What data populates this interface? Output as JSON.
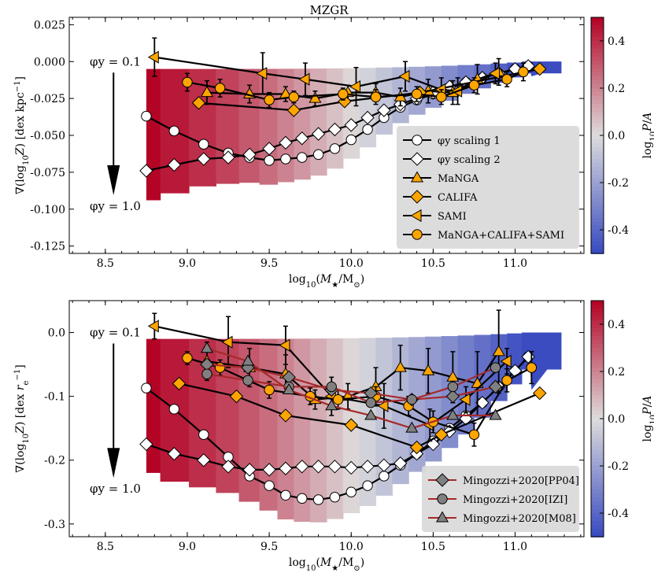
{
  "chart_data": [
    {
      "type": "line",
      "title": "MZGR",
      "xlabel": "log10(M*/M☉)",
      "ylabel": "∇(log10 Z) [dex kpc⁻¹]",
      "xlim": [
        8.28,
        11.42
      ],
      "ylim": [
        -0.13,
        0.03
      ],
      "xticks": [
        "8.5",
        "9.0",
        "9.5",
        "10.0",
        "10.5",
        "11.0"
      ],
      "yticks": [
        "0.025",
        "0.000",
        "-0.025",
        "-0.050",
        "-0.075",
        "-0.100",
        "-0.125"
      ],
      "colorbar": {
        "label": "log10 P/A",
        "range": [
          -0.5,
          0.5
        ],
        "ticks": [
          "0.4",
          "0.2",
          "0.0",
          "-0.2",
          "-0.4"
        ],
        "colors": [
          "#b40426",
          "#dddcdc",
          "#3b4cc0"
        ]
      },
      "annotations": {
        "phi_top": "φy = 0.1",
        "phi_bottom": "φy = 1.0"
      },
      "legend": {
        "placement": "lower-right",
        "entries": [
          {
            "label": "φy scaling 1",
            "marker": "circle",
            "color": "#ffffff"
          },
          {
            "label": "φy scaling 2",
            "marker": "diamond",
            "color": "#ffffff"
          },
          {
            "label": "MaNGA",
            "marker": "triangle",
            "color": "#ffa500"
          },
          {
            "label": "CALIFA",
            "marker": "diamond",
            "color": "#ffa500"
          },
          {
            "label": "SAMI",
            "marker": "triangle-left",
            "color": "#ffa500"
          },
          {
            "label": "MaNGA+CALIFA+SAMI",
            "marker": "circle",
            "color": "#ffa500"
          }
        ]
      },
      "series": [
        {
          "name": "φy scaling 1",
          "marker": "circle",
          "color": "#ffffff",
          "x": [
            8.75,
            8.92,
            9.1,
            9.25,
            9.38,
            9.5,
            9.6,
            9.7,
            9.8,
            9.9,
            10.0,
            10.1,
            10.2,
            10.3,
            10.4,
            10.5,
            10.6,
            10.7,
            10.8,
            10.9,
            11.0,
            11.08
          ],
          "y": [
            -0.037,
            -0.047,
            -0.056,
            -0.062,
            -0.065,
            -0.067,
            -0.066,
            -0.065,
            -0.063,
            -0.059,
            -0.053,
            -0.046,
            -0.038,
            -0.031,
            -0.026,
            -0.022,
            -0.018,
            -0.014,
            -0.011,
            -0.008,
            -0.005,
            -0.003
          ]
        },
        {
          "name": "φy scaling 2",
          "marker": "diamond",
          "color": "#ffffff",
          "x": [
            8.75,
            8.92,
            9.1,
            9.25,
            9.38,
            9.5,
            9.6,
            9.7,
            9.8,
            9.9,
            10.0,
            10.1,
            10.2,
            10.3,
            10.4,
            10.5,
            10.6,
            10.7,
            10.8,
            10.9,
            11.0,
            11.08
          ],
          "y": [
            -0.074,
            -0.07,
            -0.066,
            -0.065,
            -0.063,
            -0.059,
            -0.055,
            -0.052,
            -0.049,
            -0.046,
            -0.043,
            -0.038,
            -0.033,
            -0.029,
            -0.025,
            -0.021,
            -0.017,
            -0.014,
            -0.011,
            -0.008,
            -0.005,
            -0.003
          ]
        },
        {
          "name": "MaNGA",
          "marker": "triangle",
          "color": "#ffa500",
          "x": [
            9.12,
            9.38,
            9.6,
            9.78,
            9.98,
            10.15,
            10.3,
            10.47,
            10.62,
            10.77,
            10.9
          ],
          "y": [
            -0.021,
            -0.022,
            -0.022,
            -0.025,
            -0.021,
            -0.021,
            -0.024,
            -0.02,
            -0.021,
            -0.012,
            -0.007
          ],
          "err": [
            0.008,
            0.006,
            0.005,
            0.005,
            0.005,
            0.006,
            0.006,
            0.008,
            0.008,
            0.01,
            0.009
          ]
        },
        {
          "name": "CALIFA",
          "marker": "diamond",
          "color": "#ffa500",
          "x": [
            9.07,
            9.65,
            9.96,
            10.42,
            11.15
          ],
          "y": [
            -0.028,
            -0.033,
            -0.027,
            -0.021,
            -0.005
          ]
        },
        {
          "name": "SAMI",
          "marker": "triangle-left",
          "color": "#ffa500",
          "x": [
            8.8,
            9.46,
            9.72,
            10.03,
            10.33,
            10.55,
            10.65,
            10.88
          ],
          "y": [
            0.003,
            -0.008,
            -0.012,
            -0.017,
            -0.01,
            -0.019,
            -0.02,
            -0.008
          ],
          "err": [
            0.013,
            0.014,
            0.011,
            0.013,
            0.01,
            0.008,
            0.009,
            0.007
          ]
        },
        {
          "name": "MaNGA+CALIFA+SAMI",
          "marker": "circle",
          "color": "#ffa500",
          "x": [
            9.0,
            9.2,
            9.5,
            9.65,
            9.95,
            10.15,
            10.4,
            10.55,
            10.75,
            10.95,
            11.05
          ],
          "y": [
            -0.014,
            -0.018,
            -0.026,
            -0.024,
            -0.022,
            -0.024,
            -0.022,
            -0.024,
            -0.016,
            -0.012,
            -0.007
          ],
          "err": [
            0.006,
            0.006,
            0.005,
            0.004,
            0.004,
            0.005,
            0.005,
            0.005,
            0.005,
            0.005,
            0.006
          ]
        }
      ]
    },
    {
      "type": "line",
      "title": "",
      "xlabel": "log10(M*/M☉)",
      "ylabel": "∇(log10 Z) [dex re⁻¹]",
      "xlim": [
        8.28,
        11.42
      ],
      "ylim": [
        -0.32,
        0.05
      ],
      "xticks": [
        "8.5",
        "9.0",
        "9.5",
        "10.0",
        "10.5",
        "11.0"
      ],
      "yticks": [
        "0.0",
        "-0.1",
        "-0.2",
        "-0.3"
      ],
      "colorbar": {
        "label": "log10 P/A",
        "range": [
          -0.5,
          0.5
        ],
        "ticks": [
          "0.4",
          "0.2",
          "0.0",
          "-0.2",
          "-0.4"
        ],
        "colors": [
          "#b40426",
          "#dddcdc",
          "#3b4cc0"
        ]
      },
      "annotations": {
        "phi_top": "φy = 0.1",
        "phi_bottom": "φy = 1.0"
      },
      "legend": {
        "placement": "lower-right",
        "entries": [
          {
            "label": "Mingozzi+2020[PP04]",
            "marker": "diamond",
            "color": "#808080"
          },
          {
            "label": "Mingozzi+2020[IZI]",
            "marker": "circle",
            "color": "#808080"
          },
          {
            "label": "Mingozzi+2020[M08]",
            "marker": "triangle",
            "color": "#808080"
          }
        ]
      },
      "series": [
        {
          "name": "φy scaling 1",
          "marker": "circle",
          "color": "#ffffff",
          "x": [
            8.75,
            8.92,
            9.1,
            9.25,
            9.38,
            9.5,
            9.6,
            9.7,
            9.8,
            9.9,
            10.0,
            10.1,
            10.2,
            10.3,
            10.4,
            10.5,
            10.6,
            10.7,
            10.8,
            10.9,
            11.0,
            11.08
          ],
          "y": [
            -0.087,
            -0.12,
            -0.16,
            -0.195,
            -0.225,
            -0.24,
            -0.255,
            -0.26,
            -0.262,
            -0.258,
            -0.25,
            -0.24,
            -0.225,
            -0.208,
            -0.19,
            -0.17,
            -0.15,
            -0.13,
            -0.11,
            -0.085,
            -0.06,
            -0.038
          ]
        },
        {
          "name": "φy scaling 2",
          "marker": "diamond",
          "color": "#ffffff",
          "x": [
            8.75,
            8.92,
            9.1,
            9.25,
            9.38,
            9.5,
            9.6,
            9.7,
            9.8,
            9.9,
            10.0,
            10.1,
            10.2,
            10.3,
            10.4,
            10.5,
            10.6,
            10.7,
            10.8,
            10.9,
            11.0,
            11.08
          ],
          "y": [
            -0.175,
            -0.19,
            -0.2,
            -0.21,
            -0.215,
            -0.215,
            -0.213,
            -0.21,
            -0.21,
            -0.21,
            -0.212,
            -0.21,
            -0.208,
            -0.205,
            -0.19,
            -0.175,
            -0.155,
            -0.135,
            -0.11,
            -0.085,
            -0.06,
            -0.038
          ]
        },
        {
          "name": "MaNGA",
          "marker": "triangle",
          "color": "#ffa500",
          "x": [
            9.12,
            9.38,
            9.6,
            9.78,
            9.98,
            10.15,
            10.3,
            10.47,
            10.62,
            10.77,
            10.9
          ],
          "y": [
            -0.045,
            -0.055,
            -0.065,
            -0.105,
            -0.1,
            -0.085,
            -0.055,
            -0.06,
            -0.07,
            -0.08,
            -0.03
          ],
          "err": [
            0.03,
            0.03,
            0.03,
            0.015,
            0.02,
            0.03,
            0.035,
            0.035,
            0.04,
            0.05,
            0.065
          ]
        },
        {
          "name": "CALIFA",
          "marker": "diamond",
          "color": "#ffa500",
          "x": [
            8.95,
            9.3,
            9.6,
            10.0,
            10.4,
            10.55,
            11.15
          ],
          "y": [
            -0.08,
            -0.1,
            -0.13,
            -0.145,
            -0.18,
            -0.16,
            -0.095
          ]
        },
        {
          "name": "SAMI",
          "marker": "triangle-left",
          "color": "#ffa500",
          "x": [
            8.8,
            9.25,
            9.6,
            9.88,
            10.2,
            10.48,
            10.7,
            10.95
          ],
          "y": [
            0.01,
            -0.015,
            -0.02,
            -0.1,
            -0.115,
            -0.145,
            -0.105,
            -0.045
          ],
          "err": [
            0.02,
            0.04,
            0.03,
            0.03,
            0.035,
            0.025,
            0.02,
            0.02
          ]
        },
        {
          "name": "MaNGA+CALIFA+SAMI",
          "marker": "circle",
          "color": "#ffa500",
          "x": [
            9.0,
            9.2,
            9.5,
            9.75,
            9.92,
            10.15,
            10.35,
            10.5,
            10.75,
            10.95,
            11.1
          ],
          "y": [
            -0.04,
            -0.055,
            -0.09,
            -0.1,
            -0.105,
            -0.1,
            -0.115,
            -0.14,
            -0.16,
            -0.075,
            -0.055
          ],
          "err": [
            0.01,
            0.012,
            0.013,
            0.013,
            0.015,
            0.015,
            0.015,
            0.017,
            0.018,
            0.018,
            0.025
          ]
        },
        {
          "name": "Mingozzi+2020[PP04]",
          "marker": "diamond",
          "color": "#808080",
          "x": [
            9.12,
            9.37,
            9.62,
            9.88,
            10.12,
            10.37,
            10.62,
            10.88
          ],
          "y": [
            -0.05,
            -0.055,
            -0.07,
            -0.09,
            -0.095,
            -0.105,
            -0.1,
            -0.085
          ]
        },
        {
          "name": "Mingozzi+2020[IZI]",
          "marker": "circle",
          "color": "#808080",
          "x": [
            9.12,
            9.37,
            9.62,
            9.88,
            10.12,
            10.37,
            10.62,
            10.88
          ],
          "y": [
            -0.065,
            -0.075,
            -0.085,
            -0.085,
            -0.11,
            -0.105,
            -0.085,
            -0.055
          ]
        },
        {
          "name": "Mingozzi+2020[M08]",
          "marker": "triangle",
          "color": "#808080",
          "x": [
            9.12,
            9.37,
            9.62,
            9.88,
            10.12,
            10.37,
            10.62,
            10.88
          ],
          "y": [
            -0.025,
            -0.045,
            -0.09,
            -0.115,
            -0.13,
            -0.15,
            -0.13,
            -0.13
          ]
        }
      ]
    }
  ],
  "labels": {
    "title": "MZGR",
    "top_ylabel_html": "∇(log<tspan baseline-shift='sub' font-size='10'>10</tspan><tspan font-style='italic'>Z</tspan>) [dex kpc<tspan baseline-shift='super' font-size='10'>−1</tspan>]",
    "bottom_ylabel_html": "∇(log<tspan baseline-shift='sub' font-size='10'>10</tspan><tspan font-style='italic'>Z</tspan>) [dex <tspan font-style='italic'>r</tspan><tspan baseline-shift='sub' font-size='10'>e</tspan><tspan baseline-shift='super' font-size='10'>−1</tspan>]",
    "xlabel_html": "log<tspan baseline-shift='sub' font-size='10'>10</tspan>(<tspan font-style='italic'>M</tspan><tspan baseline-shift='sub' font-size='10'>★</tspan>/M<tspan baseline-shift='sub' font-size='10'>⊙</tspan>)",
    "cbar_label_html": "log<tspan baseline-shift='sub' font-size='10'>10</tspan><tspan font-style='italic'>P</tspan>/<tspan font-style='italic'>A</tspan>"
  }
}
